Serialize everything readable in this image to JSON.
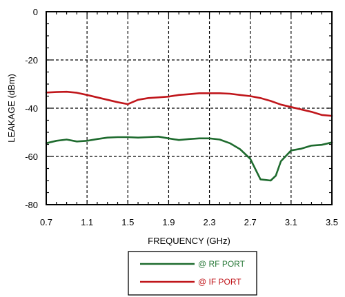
{
  "chart_data": {
    "type": "line",
    "title": "",
    "xlabel": "FREQUENCY (GHz)",
    "ylabel": "LEAKAGE (dBm)",
    "xlim": [
      0.7,
      3.5
    ],
    "ylim": [
      -80,
      0
    ],
    "xticks": [
      "0.7",
      "1.1",
      "1.5",
      "1.9",
      "2.3",
      "2.7",
      "3.1",
      "3.5"
    ],
    "yticks": [
      "0",
      "-20",
      "-40",
      "-60",
      "-80"
    ],
    "grid": true,
    "legend_position": "bottom-center",
    "series": [
      {
        "name": "@ RF PORT",
        "color": "#1e6b2e",
        "label_color": "#2a7a3a",
        "x": [
          0.7,
          0.8,
          0.9,
          1.0,
          1.1,
          1.2,
          1.3,
          1.4,
          1.5,
          1.6,
          1.7,
          1.8,
          1.9,
          2.0,
          2.1,
          2.2,
          2.3,
          2.4,
          2.5,
          2.6,
          2.7,
          2.8,
          2.9,
          2.95,
          3.0,
          3.1,
          3.2,
          3.3,
          3.4,
          3.5
        ],
        "y": [
          -54.5,
          -53.5,
          -53,
          -53.8,
          -53.5,
          -52.8,
          -52.2,
          -52,
          -52,
          -52.2,
          -52,
          -51.8,
          -52.5,
          -53.2,
          -52.8,
          -52.5,
          -52.5,
          -53,
          -54.5,
          -57,
          -61,
          -69.5,
          -70,
          -68,
          -62,
          -57.5,
          -56.8,
          -55.5,
          -55.2,
          -54.2
        ]
      },
      {
        "name": "@ IF PORT",
        "color": "#c0161b",
        "label_color": "#c0161b",
        "x": [
          0.7,
          0.8,
          0.9,
          1.0,
          1.1,
          1.2,
          1.3,
          1.4,
          1.5,
          1.6,
          1.7,
          1.8,
          1.9,
          2.0,
          2.1,
          2.2,
          2.3,
          2.4,
          2.5,
          2.6,
          2.7,
          2.8,
          2.9,
          3.0,
          3.1,
          3.2,
          3.3,
          3.4,
          3.5
        ],
        "y": [
          -33.5,
          -33.3,
          -33.2,
          -33.6,
          -34.5,
          -35.5,
          -36.5,
          -37.5,
          -38.3,
          -36.5,
          -35.8,
          -35.5,
          -35.2,
          -34.5,
          -34.2,
          -33.8,
          -33.8,
          -33.8,
          -34,
          -34.5,
          -35,
          -35.8,
          -37,
          -38.5,
          -39.5,
          -40.5,
          -41.5,
          -42.8,
          -43.2
        ]
      }
    ]
  }
}
